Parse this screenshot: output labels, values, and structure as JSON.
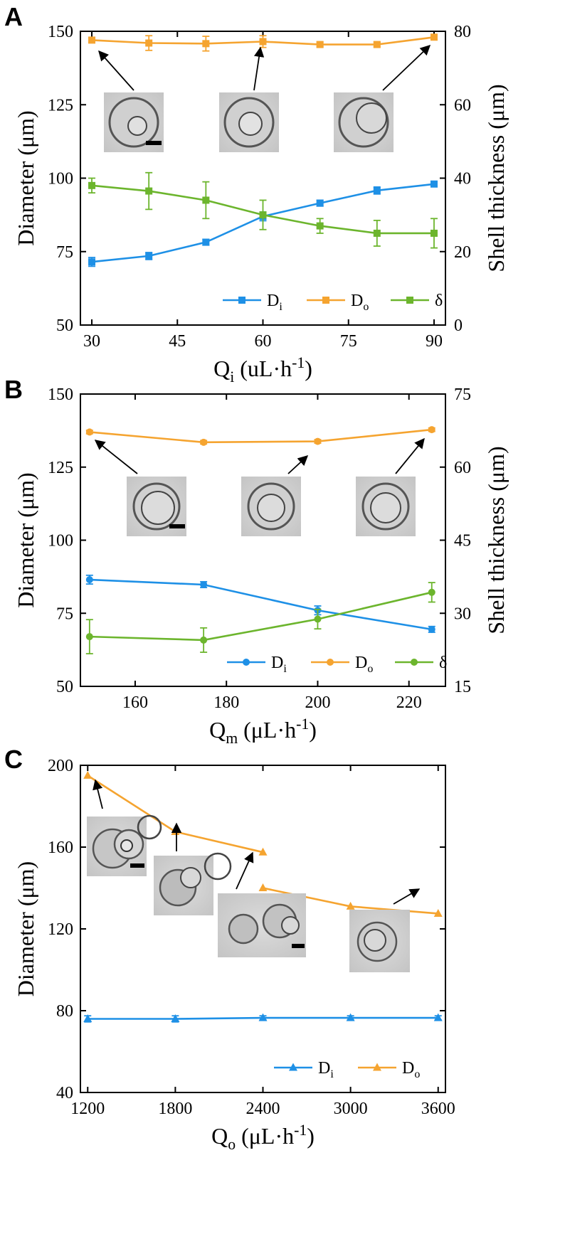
{
  "colors": {
    "Di": "#1e90e6",
    "Do": "#f5a430",
    "delta": "#6cb52d",
    "axis": "#000000"
  },
  "chart_data": [
    {
      "panel": "A",
      "type": "line",
      "x": [
        30,
        40,
        50,
        60,
        70,
        80,
        90
      ],
      "xlabel": {
        "main": "Q",
        "sub": "i",
        "unit": " (uL·h",
        "exp": "-1",
        "close": ")"
      },
      "ylabel": "Diameter (μm)",
      "y2label": "Shell thickness (μm)",
      "xlim": [
        28,
        92
      ],
      "ylim": [
        50,
        150
      ],
      "y2lim": [
        0,
        80
      ],
      "xticks": [
        30,
        45,
        60,
        75,
        90
      ],
      "yticks": [
        50,
        75,
        100,
        125,
        150
      ],
      "y2ticks": [
        0,
        20,
        40,
        60,
        80
      ],
      "marker": "square",
      "series": [
        {
          "key": "Di",
          "name": "D",
          "sub": "i",
          "axis": "left",
          "values": [
            71.5,
            73.5,
            78.2,
            87,
            91.5,
            95.8,
            98
          ],
          "errors": [
            1.5,
            1.2,
            1,
            1.5,
            1,
            1.2,
            0.8
          ]
        },
        {
          "key": "Do",
          "name": "D",
          "sub": "o",
          "axis": "left",
          "values": [
            147,
            146,
            145.8,
            146.5,
            145.5,
            145.5,
            148
          ],
          "errors": [
            0.8,
            2.5,
            2.5,
            2,
            0.8,
            0.8,
            0.8
          ]
        },
        {
          "key": "delta",
          "name": "δ",
          "sub": "",
          "axis": "right",
          "values": [
            38,
            36.5,
            34,
            30,
            27,
            25,
            25
          ],
          "errors": [
            2,
            5,
            5,
            4,
            2,
            3.5,
            4
          ]
        }
      ],
      "insets": 3
    },
    {
      "panel": "B",
      "type": "line",
      "x": [
        150,
        175,
        200,
        225
      ],
      "xlabel": {
        "main": "Q",
        "sub": "m",
        "unit": " (μL·h",
        "exp": "-1",
        "close": ")"
      },
      "ylabel": "Diameter (μm)",
      "y2label": "Shell thickness (μm)",
      "xlim": [
        148,
        228
      ],
      "ylim": [
        50,
        150
      ],
      "y2lim": [
        15,
        75
      ],
      "xticks": [
        160,
        180,
        200,
        220
      ],
      "yticks": [
        50,
        75,
        100,
        125,
        150
      ],
      "y2ticks": [
        15,
        30,
        45,
        60,
        75
      ],
      "marker": "circle",
      "series": [
        {
          "key": "Di",
          "name": "D",
          "sub": "i",
          "axis": "left",
          "values": [
            86.5,
            84.8,
            76,
            69.5
          ],
          "errors": [
            1.5,
            1,
            1.5,
            1
          ]
        },
        {
          "key": "Do",
          "name": "D",
          "sub": "o",
          "axis": "left",
          "values": [
            137,
            133.5,
            133.8,
            137.8
          ],
          "errors": [
            0.6,
            0.6,
            0.6,
            0.6
          ]
        },
        {
          "key": "delta",
          "name": "δ",
          "sub": "",
          "axis": "right",
          "values": [
            25.2,
            24.5,
            28.8,
            34.3
          ],
          "errors": [
            3.5,
            2.5,
            2,
            2
          ]
        }
      ],
      "insets": 3
    },
    {
      "panel": "C",
      "type": "line",
      "x": [
        1200,
        1800,
        2400,
        2400,
        3000,
        3600
      ],
      "xlabel": {
        "main": "Q",
        "sub": "o",
        "unit": " (μL·h",
        "exp": "-1",
        "close": ")"
      },
      "ylabel": "Diameter (μm)",
      "xlim": [
        1150,
        3650
      ],
      "ylim": [
        40,
        200
      ],
      "xticks": [
        1200,
        1800,
        2400,
        3000,
        3600
      ],
      "yticks": [
        40,
        80,
        120,
        160,
        200
      ],
      "marker": "triangle",
      "series": [
        {
          "key": "Di",
          "name": "D",
          "sub": "i",
          "axis": "left",
          "points": [
            [
              1200,
              76
            ],
            [
              1800,
              76
            ],
            [
              2400,
              76.5
            ],
            [
              3000,
              76.5
            ],
            [
              3600,
              76.5
            ]
          ],
          "errors": [
            1.5,
            1.5,
            1,
            1,
            1
          ]
        },
        {
          "key": "Do",
          "name": "D",
          "sub": "o",
          "axis": "left",
          "segments": [
            [
              [
                1200,
                195
              ],
              [
                1800,
                167.5
              ],
              [
                2400,
                157.5
              ]
            ],
            [
              [
                2400,
                140
              ],
              [
                3000,
                131
              ],
              [
                3600,
                127.5
              ]
            ]
          ]
        }
      ],
      "insets": 4
    }
  ]
}
